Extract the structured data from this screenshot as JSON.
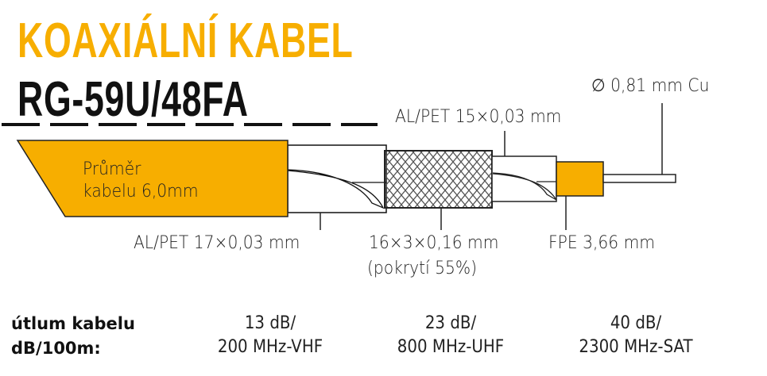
{
  "title": "KOAXIÁLNÍ KABEL",
  "model": "RG-59U/48FA",
  "colors": {
    "accent": "#f7ae00",
    "text": "#111111"
  },
  "diagram": {
    "jacket_label_line1": "Průměr",
    "jacket_label_line2": "kabelu 6,0mm",
    "conductor": "∅ 0,81 mm Cu",
    "foil_inner": "AL/PET 15×0,03 mm",
    "foil_outer": "AL/PET 17×0,03 mm",
    "braid": "16×3×0,16 mm",
    "braid_coverage": "(pokrytí 55%)",
    "dielectric": "FPE 3,66 mm"
  },
  "attenuation": {
    "heading_line1": "útlum kabelu",
    "heading_line2": "dB/100m:",
    "values": [
      {
        "value": "13 dB/",
        "freq": "200 MHz-VHF"
      },
      {
        "value": "23 dB/",
        "freq": "800 MHz-UHF"
      },
      {
        "value": "40 dB/",
        "freq": "2300 MHz-SAT"
      }
    ]
  }
}
